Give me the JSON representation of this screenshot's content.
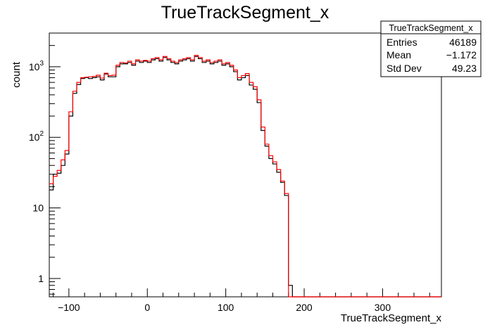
{
  "chart_data": {
    "type": "histogram",
    "title": "TrueTrackSegment_x",
    "xlabel": "TrueTrackSegment_x",
    "ylabel": "count",
    "xlim": [
      -125,
      375
    ],
    "ylim": [
      0.55,
      3000
    ],
    "yscale": "log",
    "bin_width": 5,
    "x_ticks": [
      -100,
      0,
      100,
      200,
      300
    ],
    "x_tick_labels": [
      "−100",
      "0",
      "100",
      "200",
      "300"
    ],
    "y_ticks": [
      1,
      10,
      100,
      1000
    ],
    "y_tick_labels": [
      "1",
      "10",
      "10^2",
      "10^3"
    ],
    "bin_edges_start": -125,
    "series": [
      {
        "color": "#000000",
        "values": [
          18,
          30,
          31,
          40,
          58,
          200,
          420,
          560,
          680,
          700,
          680,
          700,
          720,
          650,
          790,
          720,
          720,
          1000,
          1100,
          1100,
          1150,
          1050,
          1200,
          1150,
          1200,
          1150,
          1250,
          1300,
          1200,
          1350,
          1250,
          1150,
          1100,
          1200,
          1250,
          1300,
          1200,
          1400,
          1300,
          1150,
          1200,
          1100,
          1150,
          1200,
          1050,
          1100,
          1000,
          850,
          650,
          700,
          750,
          550,
          480,
          310,
          125,
          75,
          50,
          42,
          32,
          23,
          15,
          0.8,
          0,
          0,
          0,
          0,
          0,
          0,
          0,
          0,
          0,
          0,
          0,
          0,
          0,
          0,
          0,
          0,
          0,
          0,
          0,
          0,
          0,
          0,
          0,
          0,
          0,
          0,
          0,
          0,
          0,
          0,
          0,
          0,
          0,
          0,
          0,
          0,
          0,
          0
        ]
      },
      {
        "color": "#ff0000",
        "values": [
          22,
          28,
          34,
          48,
          65,
          230,
          450,
          600,
          700,
          710,
          720,
          730,
          760,
          690,
          810,
          750,
          760,
          1050,
          1150,
          1130,
          1200,
          1100,
          1250,
          1200,
          1230,
          1200,
          1300,
          1350,
          1250,
          1400,
          1300,
          1200,
          1150,
          1250,
          1300,
          1350,
          1250,
          1450,
          1350,
          1200,
          1250,
          1150,
          1200,
          1250,
          1100,
          1150,
          1050,
          900,
          700,
          750,
          800,
          600,
          520,
          340,
          140,
          80,
          55,
          45,
          35,
          24,
          16,
          0,
          0,
          0,
          0,
          0,
          0,
          0,
          0,
          0,
          0,
          0,
          0,
          0,
          0,
          0,
          0,
          0,
          0,
          0,
          0,
          0,
          0,
          0,
          0,
          0,
          0,
          0,
          0,
          0,
          0,
          0,
          0,
          0,
          0,
          0,
          0,
          0,
          0,
          0
        ]
      }
    ],
    "stats_box": {
      "title": "TrueTrackSegment_x",
      "rows": [
        {
          "label": "Entries",
          "value": "46189"
        },
        {
          "label": "Mean",
          "value": "−1.172"
        },
        {
          "label": "Std Dev",
          "value": "49.23"
        }
      ]
    }
  }
}
